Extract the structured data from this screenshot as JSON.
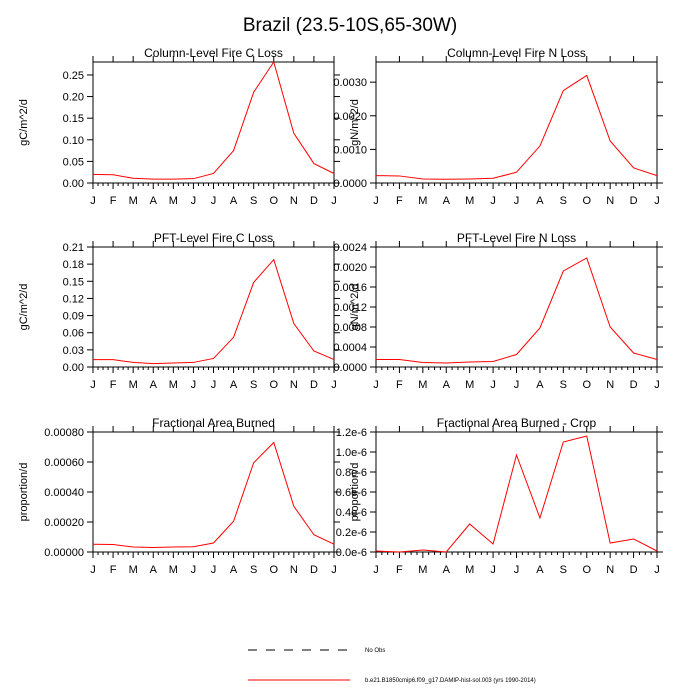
{
  "figure_title": "Brazil (23.5-10S,65-30W)",
  "month_labels": [
    "J",
    "F",
    "M",
    "A",
    "M",
    "J",
    "J",
    "A",
    "S",
    "O",
    "N",
    "D",
    "J"
  ],
  "chart_data": [
    {
      "type": "line",
      "title": "Column-Level Fire C Loss",
      "ylabel": "gC/m^2/d",
      "xlabel": "",
      "ylim": [
        0,
        0.28
      ],
      "yticks": [
        "0.00",
        "0.05",
        "0.10",
        "0.15",
        "0.20",
        "0.25"
      ],
      "ytick_values": [
        0,
        0.05,
        0.1,
        0.15,
        0.2,
        0.25
      ],
      "x": [
        "J",
        "F",
        "M",
        "A",
        "M",
        "J",
        "J",
        "A",
        "S",
        "O",
        "N",
        "D",
        "J"
      ],
      "series": [
        {
          "values": [
            0.02,
            0.019,
            0.011,
            0.009,
            0.009,
            0.01,
            0.022,
            0.075,
            0.21,
            0.28,
            0.115,
            0.045,
            0.022
          ]
        }
      ]
    },
    {
      "type": "line",
      "title": "Column-Level Fire N Loss",
      "ylabel": "gN/m^2/d",
      "xlabel": "",
      "ylim": [
        0,
        0.0036
      ],
      "yticks": [
        "0.0000",
        "0.0010",
        "0.0020",
        "0.0030"
      ],
      "ytick_values": [
        0,
        0.001,
        0.002,
        0.003
      ],
      "x": [
        "J",
        "F",
        "M",
        "A",
        "M",
        "J",
        "J",
        "A",
        "S",
        "O",
        "N",
        "D",
        "J"
      ],
      "series": [
        {
          "values": [
            0.00022,
            0.00021,
            0.00012,
            0.00011,
            0.00012,
            0.00014,
            0.00032,
            0.0011,
            0.00275,
            0.0032,
            0.00125,
            0.00045,
            0.00022
          ]
        }
      ]
    },
    {
      "type": "line",
      "title": "PFT-Level Fire C Loss",
      "ylabel": "gC/m^2/d",
      "xlabel": "",
      "ylim": [
        0,
        0.21
      ],
      "yticks": [
        "0.00",
        "0.03",
        "0.06",
        "0.09",
        "0.12",
        "0.15",
        "0.18",
        "0.21"
      ],
      "ytick_values": [
        0,
        0.03,
        0.06,
        0.09,
        0.12,
        0.15,
        0.18,
        0.21
      ],
      "x": [
        "J",
        "F",
        "M",
        "A",
        "M",
        "J",
        "J",
        "A",
        "S",
        "O",
        "N",
        "D",
        "J"
      ],
      "series": [
        {
          "values": [
            0.013,
            0.013,
            0.008,
            0.006,
            0.007,
            0.008,
            0.015,
            0.052,
            0.148,
            0.188,
            0.076,
            0.028,
            0.013
          ]
        }
      ]
    },
    {
      "type": "line",
      "title": "PFT-Level Fire N Loss",
      "ylabel": "gN/m^2/d",
      "xlabel": "",
      "ylim": [
        0,
        0.0024
      ],
      "yticks": [
        "0.0000",
        "0.0004",
        "0.0008",
        "0.0012",
        "0.0016",
        "0.0020",
        "0.0024"
      ],
      "ytick_values": [
        0,
        0.0004,
        0.0008,
        0.0012,
        0.0016,
        0.002,
        0.0024
      ],
      "x": [
        "J",
        "F",
        "M",
        "A",
        "M",
        "J",
        "J",
        "A",
        "S",
        "O",
        "N",
        "D",
        "J"
      ],
      "series": [
        {
          "values": [
            0.00015,
            0.00015,
            9e-05,
            8e-05,
            0.0001,
            0.00011,
            0.00025,
            0.00078,
            0.00192,
            0.00218,
            0.0008,
            0.00028,
            0.00015
          ]
        }
      ]
    },
    {
      "type": "line",
      "title": "Fractional Area Burned",
      "ylabel": "proportion/d",
      "xlabel": "",
      "ylim": [
        0,
        0.0008
      ],
      "yticks": [
        "0.00000",
        "0.00020",
        "0.00040",
        "0.00060",
        "0.00080"
      ],
      "ytick_values": [
        0,
        0.0002,
        0.0004,
        0.0006,
        0.0008
      ],
      "x": [
        "J",
        "F",
        "M",
        "A",
        "M",
        "J",
        "J",
        "A",
        "S",
        "O",
        "N",
        "D",
        "J"
      ],
      "series": [
        {
          "values": [
            5.2e-05,
            5e-05,
            3.3e-05,
            3e-05,
            3.3e-05,
            3.5e-05,
            6e-05,
            0.000205,
            0.000595,
            0.00073,
            0.000305,
            0.000115,
            5.2e-05
          ]
        }
      ]
    },
    {
      "type": "line",
      "title": "Fractional Area Burned - Crop",
      "ylabel": "proportion/d",
      "xlabel": "",
      "ylim": [
        0,
        1.2e-06
      ],
      "yticks": [
        "0.0e-6",
        "0.2e-6",
        "0.4e-6",
        "0.6e-6",
        "0.8e-6",
        "1.0e-6",
        "1.2e-6"
      ],
      "ytick_values": [
        0,
        2e-07,
        4e-07,
        6e-07,
        8e-07,
        1e-06,
        1.2e-06
      ],
      "x": [
        "J",
        "F",
        "M",
        "A",
        "M",
        "J",
        "J",
        "A",
        "S",
        "O",
        "N",
        "D",
        "J"
      ],
      "series": [
        {
          "values": [
            1e-08,
            0.0,
            2e-08,
            0.0,
            2.8e-07,
            8e-08,
            9.7e-07,
            3.4e-07,
            1.1e-06,
            1.16e-06,
            9e-08,
            1.3e-07,
            1e-08
          ]
        }
      ]
    }
  ],
  "legend": {
    "entries": [
      {
        "label": "No Obs",
        "style": "dashed",
        "color": "#000000"
      },
      {
        "label": "b.e21.B1850cmip6.f09_g17.DAMIP-hist-sol.003 (yrs 1990-2014)",
        "style": "solid",
        "color": "#ff0000"
      }
    ]
  },
  "colors": {
    "series": "#ff0000",
    "axes": "#000000"
  }
}
